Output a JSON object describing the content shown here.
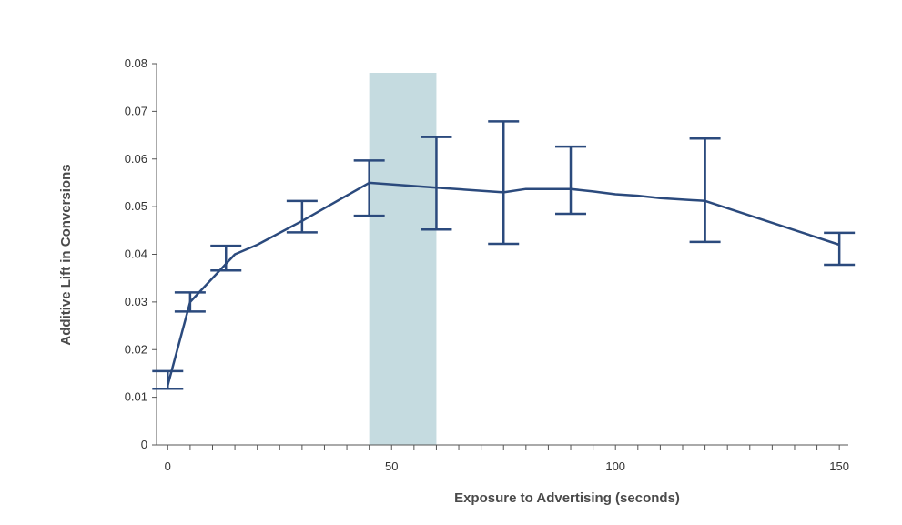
{
  "chart_data": {
    "type": "line",
    "title": "",
    "xlabel": "Exposure to Advertising (seconds)",
    "ylabel": "Additive Lift in Conversions",
    "xlim": [
      -2.5,
      152
    ],
    "ylim": [
      0,
      0.08
    ],
    "xticks": [
      0,
      50,
      100,
      150
    ],
    "yticks": [
      0,
      0.01,
      0.02,
      0.03,
      0.04,
      0.05,
      0.06,
      0.07,
      0.08
    ],
    "ytick_labels": [
      "0",
      "0.01",
      "0.02",
      "0.03",
      "0.04",
      "0.05",
      "0.06",
      "0.07",
      "0.08"
    ],
    "grid": false,
    "highlight_band": {
      "x_start": 45,
      "x_end": 60,
      "color": "#c5dbe0"
    },
    "line_color": "#2b4a7d",
    "line_points": [
      {
        "x": 0,
        "y": 0.0125
      },
      {
        "x": 5,
        "y": 0.03
      },
      {
        "x": 15,
        "y": 0.04
      },
      {
        "x": 20,
        "y": 0.042
      },
      {
        "x": 30,
        "y": 0.047
      },
      {
        "x": 45,
        "y": 0.055
      },
      {
        "x": 60,
        "y": 0.054
      },
      {
        "x": 75,
        "y": 0.053
      },
      {
        "x": 80,
        "y": 0.0537
      },
      {
        "x": 90,
        "y": 0.0537
      },
      {
        "x": 95,
        "y": 0.0532
      },
      {
        "x": 100,
        "y": 0.0526
      },
      {
        "x": 105,
        "y": 0.0523
      },
      {
        "x": 110,
        "y": 0.0518
      },
      {
        "x": 120,
        "y": 0.0512
      },
      {
        "x": 150,
        "y": 0.042
      }
    ],
    "error_bars": [
      {
        "x": 0,
        "low": 0.0118,
        "high": 0.0155
      },
      {
        "x": 5,
        "low": 0.028,
        "high": 0.032
      },
      {
        "x": 13,
        "low": 0.0366,
        "high": 0.0418
      },
      {
        "x": 30,
        "low": 0.0446,
        "high": 0.0512
      },
      {
        "x": 45,
        "low": 0.0481,
        "high": 0.0597
      },
      {
        "x": 60,
        "low": 0.0452,
        "high": 0.0646
      },
      {
        "x": 75,
        "low": 0.0422,
        "high": 0.0679
      },
      {
        "x": 90,
        "low": 0.0485,
        "high": 0.0626
      },
      {
        "x": 120,
        "low": 0.0426,
        "high": 0.0643
      },
      {
        "x": 150,
        "low": 0.0378,
        "high": 0.0445
      }
    ]
  }
}
